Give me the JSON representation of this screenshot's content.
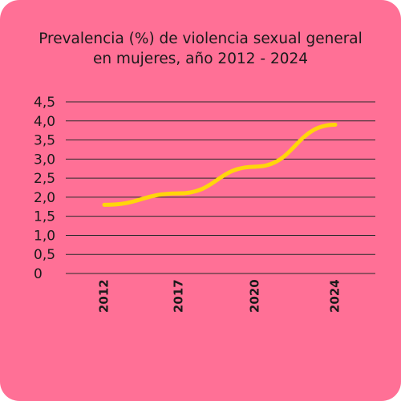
{
  "theme": {
    "background": "#ff7096",
    "line_color": "#ffd60a",
    "grid_color": "#2a2a2a",
    "text_color": "#1a1a1a"
  },
  "chart_data": {
    "type": "line",
    "title_line1": "Prevalencia (%) de violencia sexual general",
    "title_line2": "en mujeres, año 2012 - 2024",
    "categories": [
      "2012",
      "2017",
      "2020",
      "2024"
    ],
    "values": [
      1.8,
      2.1,
      2.8,
      3.9
    ],
    "ylim": [
      0,
      4.5
    ],
    "y_ticks": [
      "0",
      "0,5",
      "1,0",
      "1,5",
      "2,0",
      "2,5",
      "3,0",
      "3,5",
      "4,0",
      "4,5"
    ],
    "grid": true,
    "legend": "none"
  }
}
